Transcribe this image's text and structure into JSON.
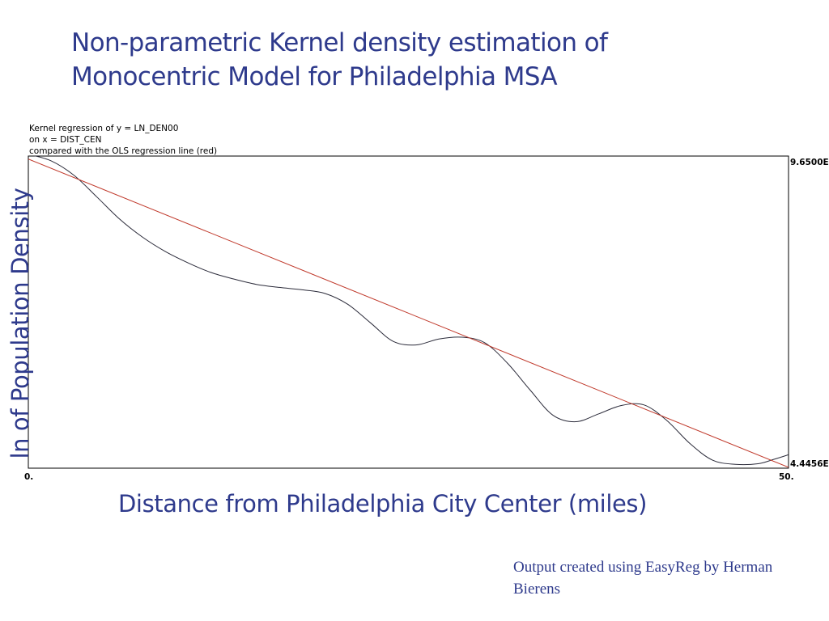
{
  "title": {
    "line1": "Non-parametric Kernel density estimation of",
    "line2": "Monocentric Model for Philadelphia MSA"
  },
  "chart_header": {
    "line1": "Kernel regression of y = LN_DEN00",
    "line2": "on x = DIST_CEN",
    "line3": "compared with the OLS regression line (red)"
  },
  "y_axis_label": "ln of Population Density",
  "x_axis_label": "Distance from Philadelphia City Center (miles)",
  "credit": "Output created using EasyReg by Herman Bierens",
  "colors": {
    "text_accent": "#2e3a8c",
    "kernel_line": "#2b2b3a",
    "ols_line": "#c0392b"
  },
  "chart_data": {
    "type": "line",
    "title": "Kernel regression of y = LN_DEN00 on x = DIST_CEN compared with the OLS regression line (red)",
    "xlabel": "Distance from Philadelphia City Center (miles)",
    "ylabel": "ln of Population Density",
    "xlim": [
      0,
      50
    ],
    "ylim": [
      4.4456,
      9.65
    ],
    "x_tick_labels": [
      "0.",
      "50."
    ],
    "y_tick_labels": [
      "4.4456E",
      "9.6500E"
    ],
    "grid": false,
    "series": [
      {
        "name": "Kernel regression",
        "style": "kernel",
        "x": [
          0,
          1.5,
          3,
          4.5,
          6,
          7.5,
          9,
          10.5,
          12,
          13.5,
          15,
          16.5,
          18,
          19.5,
          21,
          22.5,
          24,
          25.5,
          27,
          28.5,
          30,
          31.5,
          33,
          34.5,
          36,
          37.5,
          39,
          40.5,
          42,
          43.5,
          45,
          46.5,
          48,
          49,
          50
        ],
        "y": [
          9.68,
          9.57,
          9.33,
          8.97,
          8.6,
          8.3,
          8.06,
          7.87,
          7.71,
          7.6,
          7.51,
          7.46,
          7.42,
          7.36,
          7.18,
          6.87,
          6.56,
          6.5,
          6.6,
          6.63,
          6.54,
          6.2,
          5.75,
          5.33,
          5.22,
          5.35,
          5.49,
          5.5,
          5.24,
          4.86,
          4.58,
          4.51,
          4.52,
          4.59,
          4.67
        ]
      },
      {
        "name": "OLS regression line",
        "style": "ols",
        "x": [
          0,
          50
        ],
        "y": [
          9.6,
          4.46
        ]
      }
    ]
  }
}
